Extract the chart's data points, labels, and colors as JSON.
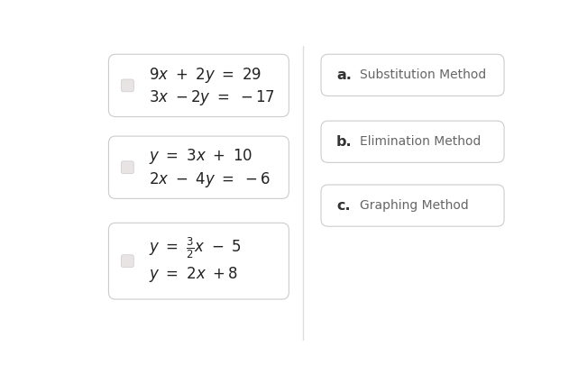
{
  "page_bg": "#ffffff",
  "box_bg": "#ffffff",
  "box_edge": "#cccccc",
  "small_square_color": "#e8e4e4",
  "right_boxes": [
    {
      "label": "a.",
      "text": "Substitution Method"
    },
    {
      "label": "b.",
      "text": "Elimination Method"
    },
    {
      "label": "c.",
      "text": "Graphing Method"
    }
  ],
  "divider_color": "#dddddd",
  "left_box_defs": [
    {
      "line1": "$9x  +  2y  =  29$",
      "line2": "$3x  -2y  =  -17$",
      "has_fraction": false
    },
    {
      "line1": "$y  =  3x  +  10$",
      "line2": "$2x  -  4y  =  -6$",
      "has_fraction": false
    },
    {
      "line1_frac": true,
      "line2": "$y  =  2x  +8$",
      "has_fraction": true
    }
  ]
}
